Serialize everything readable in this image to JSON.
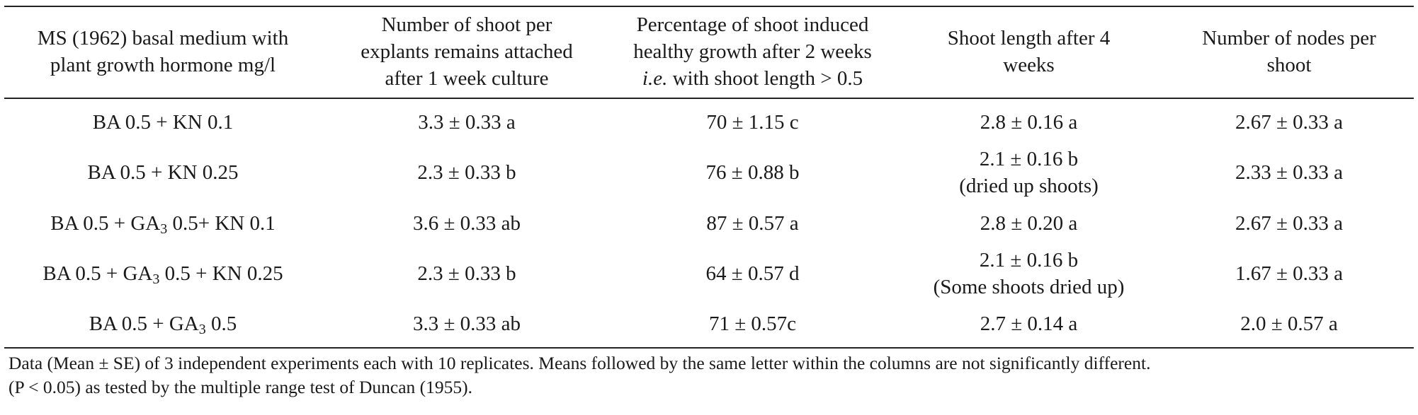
{
  "headers": [
    [
      "MS (1962) basal medium with",
      "plant growth hormone mg/l"
    ],
    [
      "Number of shoot per",
      "explants remains attached",
      "after 1 week culture"
    ],
    [
      "Percentage of shoot induced",
      "healthy growth after 2 weeks",
      "with shoot length > 0.5"
    ],
    [
      "Shoot length after 4",
      "weeks"
    ],
    [
      "Number of nodes per",
      "shoot"
    ]
  ],
  "header_ie": "i.e.",
  "rows": [
    {
      "treatment": {
        "pre": "BA 0.5 + KN 0.1",
        "sub": "",
        "post": ""
      },
      "shoots": "3.3 ± 0.33 a",
      "percent": "70 ± 1.15 c",
      "length": "2.8 ± 0.16 a",
      "length_note": "",
      "nodes": "2.67 ± 0.33 a"
    },
    {
      "treatment": {
        "pre": "BA 0.5 + KN 0.25",
        "sub": "",
        "post": ""
      },
      "shoots": "2.3 ± 0.33 b",
      "percent": "76 ± 0.88 b",
      "length": "2.1 ± 0.16 b",
      "length_note": "(dried up shoots)",
      "nodes": "2.33 ± 0.33 a"
    },
    {
      "treatment": {
        "pre": "BA 0.5 + GA",
        "sub": "3",
        "post": " 0.5+ KN 0.1"
      },
      "shoots": "3.6 ± 0.33 ab",
      "percent": "87 ± 0.57 a",
      "length": "2.8 ± 0.20 a",
      "length_note": "",
      "nodes": "2.67 ± 0.33 a"
    },
    {
      "treatment": {
        "pre": "BA 0.5 + GA",
        "sub": "3",
        "post": " 0.5 + KN 0.25"
      },
      "shoots": "2.3 ± 0.33 b",
      "percent": "64 ± 0.57 d",
      "length": "2.1 ± 0.16 b",
      "length_note": "(Some shoots dried up)",
      "nodes": "1.67 ± 0.33 a"
    },
    {
      "treatment": {
        "pre": "BA 0.5 + GA",
        "sub": "3",
        "post": " 0.5"
      },
      "shoots": "3.3 ± 0.33 ab",
      "percent": "71 ± 0.57c",
      "length": "2.7 ± 0.14 a",
      "length_note": "",
      "nodes": "2.0 ± 0.57 a"
    }
  ],
  "footnote": [
    "Data (Mean ± SE) of 3 independent experiments each with 10 replicates. Means followed by the same letter within the columns are not significantly different.",
    "(P < 0.05) as tested by the multiple range test of Duncan (1955)."
  ]
}
